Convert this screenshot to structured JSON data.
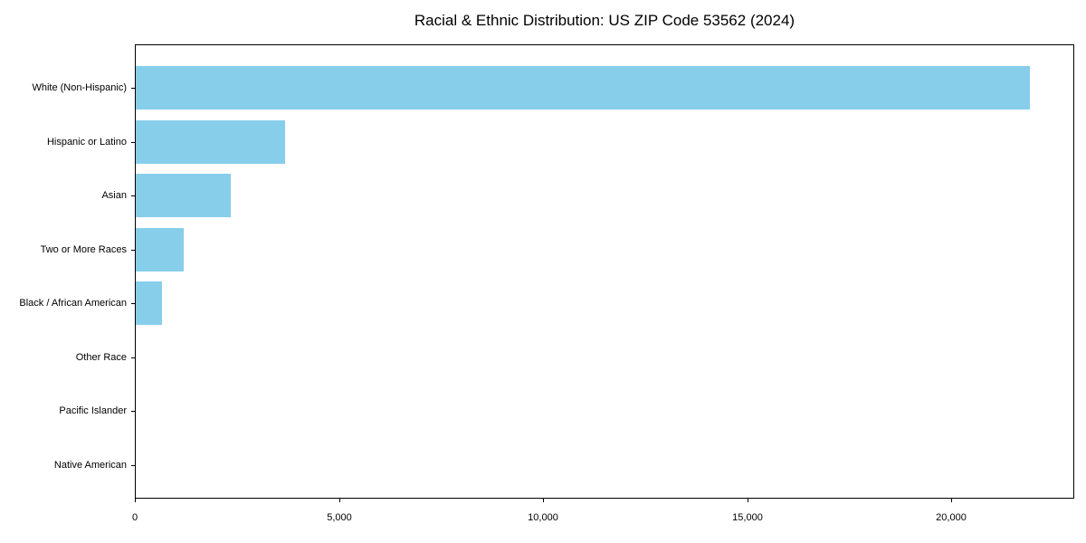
{
  "chart_data": {
    "type": "bar",
    "orientation": "horizontal",
    "title": "Racial & Ethnic Distribution: US ZIP Code 53562 (2024)",
    "categories": [
      "White (Non-Hispanic)",
      "Hispanic or Latino",
      "Asian",
      "Two or More Races",
      "Black / African American",
      "Other Race",
      "Pacific Islander",
      "Native American"
    ],
    "values": [
      21900,
      3660,
      2330,
      1175,
      640,
      0,
      0,
      0
    ],
    "xlabel": "",
    "ylabel": "",
    "xlim": [
      0,
      23000
    ],
    "x_ticks": [
      0,
      5000,
      10000,
      15000,
      20000
    ],
    "x_tick_labels": [
      "0",
      "5,000",
      "10,000",
      "15,000",
      "20,000"
    ],
    "bar_color": "#87CEEB",
    "axis_color": "#000000",
    "grid": false,
    "legend": "none"
  }
}
